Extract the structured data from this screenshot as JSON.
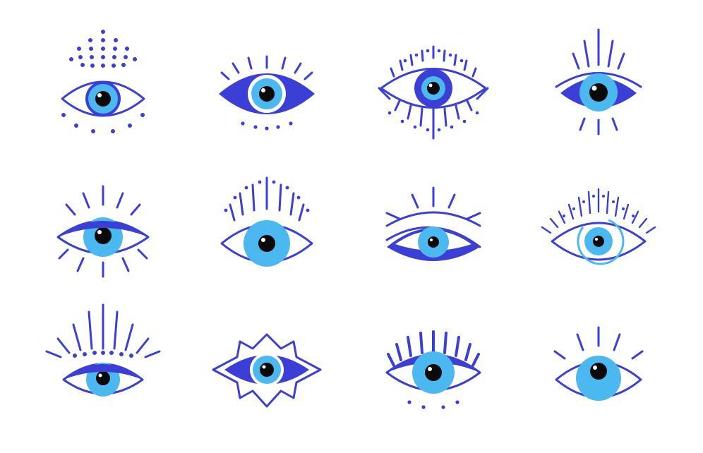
{
  "illustration": {
    "subject": "evil-eye-icon-set",
    "rows": 3,
    "columns": 4,
    "icons": [
      {
        "name": "eye-icon-dotted-crown",
        "style": "outline-almond-with-dot-rays-above-and-dot-row-below"
      },
      {
        "name": "eye-icon-filled-lashes",
        "style": "filled-almond-with-short-lashes-and-dots-below"
      },
      {
        "name": "eye-icon-fringed",
        "style": "outline-almond-with-lashes-and-dotted-lashes-above-and-below"
      },
      {
        "name": "eye-icon-filled-rays",
        "style": "filled-almond-with-curved-brow-and-long-rays"
      },
      {
        "name": "eye-icon-heavy-lid",
        "style": "outline-almond-with-filled-lid-and-sun-rays"
      },
      {
        "name": "eye-icon-dashed-lashes",
        "style": "outline-almond-with-dotted-lashes-and-large-iris"
      },
      {
        "name": "eye-icon-thick-lower-lid",
        "style": "outline-almond-with-brow-rays-and-filled-lower-lid"
      },
      {
        "name": "eye-icon-fine-lashes",
        "style": "outline-almond-with-many-thin-lashes-and-iris-ring"
      },
      {
        "name": "eye-icon-sunburst-lid",
        "style": "outline-almond-with-filled-lid-dots-and-rays"
      },
      {
        "name": "eye-icon-star-frame",
        "style": "filled-almond-inside-spiky-star-outline"
      },
      {
        "name": "eye-icon-bold-lashes",
        "style": "outline-almond-with-filled-lashes-and-dots-below"
      },
      {
        "name": "eye-icon-simple-lashes",
        "style": "outline-almond-with-three-lashes"
      }
    ]
  },
  "colors": {
    "line": "#3b3fd6",
    "iris": "#4cb8f0",
    "irisLight": "#8fd4f7",
    "pupil": "#0a0a0a",
    "highlight": "#ffffff",
    "background": "#ffffff"
  }
}
